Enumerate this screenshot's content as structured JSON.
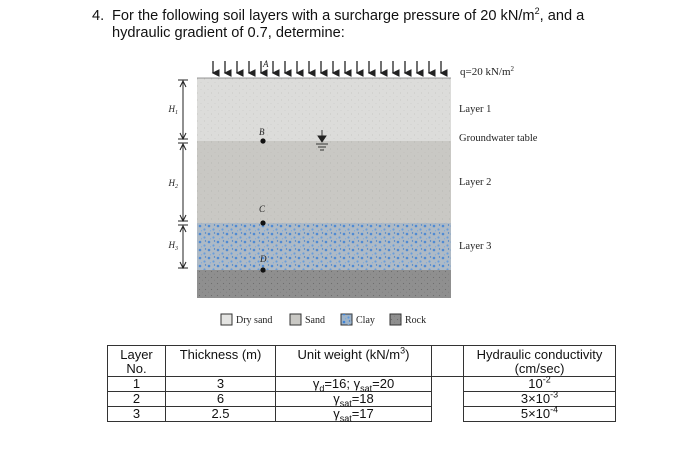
{
  "question": {
    "number": "4.",
    "line1_a": "For the following soil layers with a surcharge pressure of 20 kN/m",
    "line1_sup": "2",
    "line1_b": ", and a",
    "line2": "hydraulic gradient of 0.7, determine:"
  },
  "figure": {
    "surcharge_label": "q=20 kN/m",
    "surcharge_sup": "2",
    "point_a": "A",
    "point_b": "B",
    "point_c": "C",
    "point_d": "D",
    "h1": "H",
    "h1_sub": "1",
    "h2": "H",
    "h2_sub": "2",
    "h3": "H",
    "h3_sub": "3",
    "layer1": "Layer 1",
    "groundwater": "Groundwater table",
    "layer2": "Layer 2",
    "layer3": "Layer 3",
    "legend": [
      "Dry sand",
      "Sand",
      "Clay",
      "Rock"
    ],
    "colors": {
      "layer1": "#dcdcda",
      "layer2": "#c9c8c4",
      "layer3": "#aebac6",
      "rock": "#8f8f8f",
      "clay_dots": "#3d82d6"
    }
  },
  "table": {
    "headers": {
      "layer_a": "Layer",
      "layer_b": "No.",
      "thickness": "Thickness (m)",
      "unit_weight_a": "Unit weight (kN/m",
      "unit_weight_sup": "3",
      "unit_weight_b": ")",
      "hydraulic_a": "Hydraulic conductivity",
      "hydraulic_b": "(cm/sec)"
    },
    "rows": [
      {
        "layer": "1",
        "thickness": "3",
        "uw1_sym": "γ",
        "uw1_sub": "d",
        "uw1_val": "=16; ",
        "uw2_sym": "γ",
        "uw2_sub": "sat",
        "uw2_val": "=20",
        "k_base": "10",
        "k_exp": "-2"
      },
      {
        "layer": "2",
        "thickness": "6",
        "uw1_sym": "γ",
        "uw1_sub": "sat",
        "uw1_val": "=18",
        "k_base": "3×10",
        "k_exp": "-3"
      },
      {
        "layer": "3",
        "thickness": "2.5",
        "uw1_sym": "γ",
        "uw1_sub": "sat",
        "uw1_val": "=17",
        "k_base": "5×10",
        "k_exp": "-4"
      }
    ]
  }
}
